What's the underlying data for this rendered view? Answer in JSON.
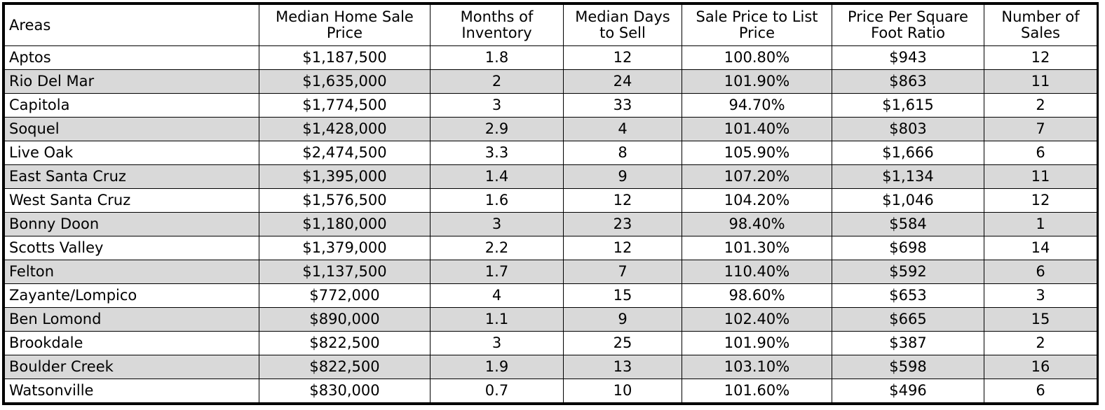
{
  "table": {
    "headers": [
      "Areas",
      "Median Home Sale Price",
      "Months of Inventory",
      "Median Days to Sell",
      "Sale Price to List Price",
      "Price Per Square Foot Ratio",
      "Number of Sales"
    ],
    "rows": [
      [
        "Aptos",
        "$1,187,500",
        "1.8",
        "12",
        "100.80%",
        "$943",
        "12"
      ],
      [
        "Rio Del Mar",
        "$1,635,000",
        "2",
        "24",
        "101.90%",
        "$863",
        "11"
      ],
      [
        "Capitola",
        "$1,774,500",
        "3",
        "33",
        "94.70%",
        "$1,615",
        "2"
      ],
      [
        "Soquel",
        "$1,428,000",
        "2.9",
        "4",
        "101.40%",
        "$803",
        "7"
      ],
      [
        "Live Oak",
        "$2,474,500",
        "3.3",
        "8",
        "105.90%",
        "$1,666",
        "6"
      ],
      [
        "East Santa Cruz",
        "$1,395,000",
        "1.4",
        "9",
        "107.20%",
        "$1,134",
        "11"
      ],
      [
        "West Santa Cruz",
        "$1,576,500",
        "1.6",
        "12",
        "104.20%",
        "$1,046",
        "12"
      ],
      [
        "Bonny Doon",
        "$1,180,000",
        "3",
        "23",
        "98.40%",
        "$584",
        "1"
      ],
      [
        "Scotts Valley",
        "$1,379,000",
        "2.2",
        "12",
        "101.30%",
        "$698",
        "14"
      ],
      [
        "Felton",
        "$1,137,500",
        "1.7",
        "7",
        "110.40%",
        "$592",
        "6"
      ],
      [
        "Zayante/Lompico",
        "$772,000",
        "4",
        "15",
        "98.60%",
        "$653",
        "3"
      ],
      [
        "Ben Lomond",
        "$890,000",
        "1.1",
        "9",
        "102.40%",
        "$665",
        "15"
      ],
      [
        "Brookdale",
        "$822,500",
        "3",
        "25",
        "101.90%",
        "$387",
        "2"
      ],
      [
        "Boulder Creek",
        "$822,500",
        "1.9",
        "13",
        "103.10%",
        "$598",
        "16"
      ],
      [
        "Watsonville",
        "$830,000",
        "0.7",
        "10",
        "101.60%",
        "$496",
        "6"
      ]
    ]
  },
  "colors": {
    "border": "#000000",
    "stripe": "#d9d9d9",
    "background": "#ffffff"
  }
}
